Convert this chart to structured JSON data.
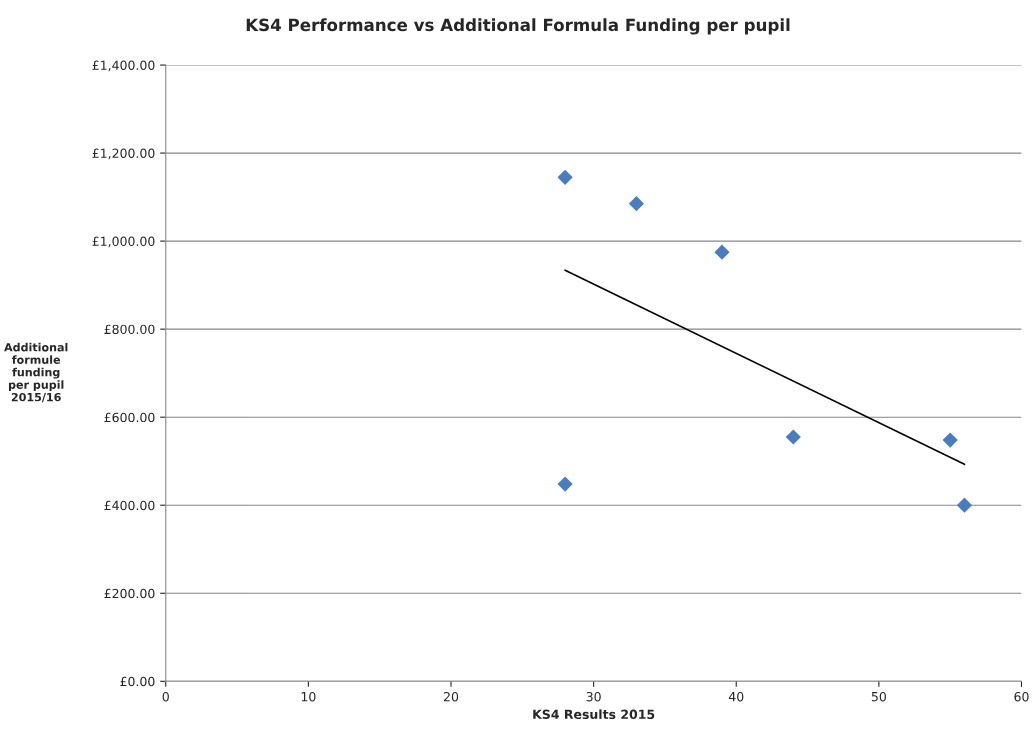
{
  "chart_data": {
    "type": "scatter",
    "title": "KS4 Performance vs Additional Formula Funding per pupil",
    "xlabel": "KS4 Results 2015",
    "ylabel": "Additional\nformule\nfunding\nper pupil\n2015/16",
    "series": [
      {
        "color": "#4a7ebb",
        "marker": "diamond",
        "x": [
          28,
          33,
          39,
          44,
          55,
          28,
          56
        ],
        "values": [
          1145,
          1085,
          975,
          555,
          548,
          448,
          400
        ]
      },
      {
        "type": "line",
        "color": "#000000",
        "marker": "none",
        "x": [
          28,
          56
        ],
        "values": [
          934,
          493
        ]
      }
    ],
    "xlim": [
      0,
      60
    ],
    "xticks": [
      0,
      10,
      20,
      30,
      40,
      50,
      60
    ],
    "ylim": [
      0,
      1400
    ],
    "yticks": [
      {
        "value": 0,
        "label": "£0.00"
      },
      {
        "value": 200,
        "label": "£200.00"
      },
      {
        "value": 400,
        "label": "£400.00"
      },
      {
        "value": 600,
        "label": "£600.00"
      },
      {
        "value": 800,
        "label": "£800.00"
      },
      {
        "value": 1000,
        "label": "£1,000.00"
      },
      {
        "value": 1200,
        "label": "£1,200.00"
      },
      {
        "value": 1400,
        "label": "£1,400.00"
      }
    ],
    "grid": "y",
    "legend": false
  }
}
